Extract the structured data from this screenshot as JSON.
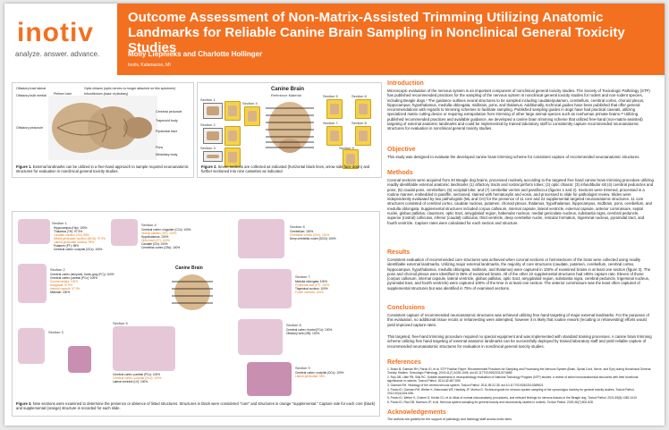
{
  "header": {
    "logo": "inotiv",
    "tagline": "analyze. answer. advance.",
    "title": "Outcome Assessment of Non-Matrix-Assisted Trimming Utilizing Anatomic Landmarks for Reliable Canine Brain Sampling in Nonclinical General Toxicity Studies",
    "authors": "Molly Liepnieks and Charlotte Hollinger",
    "affiliation": "Inotiv, Kalamazoo, MI",
    "accent": "#f37021"
  },
  "fig1": {
    "labels": {
      "olf_tract": "Olfactory tract lateral",
      "olf_bulb": "Olfactory bulb medial",
      "piriform": "Piriform lobe",
      "optic_chiasm": "Optic chiasm (optic nerves no longer attached on this specimen)",
      "infundibulum": "Infundibulum (base of pituitary)",
      "cerebral_ped": "Cerebral peduncle",
      "trapezoid": "Trapezoid body",
      "pyramidal": "Pyramidal tract",
      "pons": "Pons",
      "medulla": "Medullary body",
      "olf_ped": "Olfactory peduncle"
    },
    "caption_bold": "Figure 1.",
    "caption": "External landmarks can be utilized in a free-hand approach to sample required neuroanatomic structures for evaluation in nonclinical general toxicity studies."
  },
  "fig2": {
    "title": "Canine Brain",
    "subtitle": "Reference Material",
    "sections": [
      "Section 1",
      "Section 2",
      "Section 3",
      "Section 4",
      "Section 5",
      "Section 6",
      "Section 7",
      "Section 8",
      "Section 9"
    ],
    "caption_bold": "Figure 2.",
    "caption": "Seven sections are collected as indicated (horizontal black lines, arrow side face down) and further sectioned into nine cassettes as indicated."
  },
  "fig3": {
    "center_label": "Canine Brain",
    "sections": [
      "Section 1",
      "Section 2",
      "Section 3",
      "Section 4",
      "Section 5",
      "Section 6",
      "Section 7",
      "Section 8",
      "Section 9"
    ],
    "list_s1": [
      "Hippocampus (HIp): 100%",
      "Thalamus (TH): 97.9%",
      "Caudate nucleus (CN): 98%",
      "Medial geniculate nucleus (MGN): 97.9%",
      "Lateral geniculate nucleus: 95%",
      "Putamen (PT): 98%",
      "Cerebral cortex: occipital (OCc): 100%"
    ],
    "list_s2": [
      "Cerebral cortex (temporal, fronto-gray (FC)): 100%",
      "Cerebral cortex: parietal (PCc): 100%",
      "Corona radiata: 100%",
      "Amygdala: 97.9%",
      "Internal capsule: 97.9%",
      "Midbrain: 100%"
    ],
    "list_s4": [
      "Cerebral cortex: cingulate (CCc): 100%",
      "Globus pallidus (GP): 100%",
      "Hypothalamus: 100%",
      "Optic tract (OT): 100%",
      "Caudate (CN): 100%",
      "Cerebellar cortex (CBc): 100%"
    ],
    "list_s5": [
      "Cerebral cortex: parietal (PCc): 100%",
      "Cerebral cortex: occipital (OCc): 100%",
      "Lateral ventricle (LV): 100%"
    ],
    "list_s6": [
      "Cerebellum: 100%",
      "Cerebellar vermis (CbV): 100%",
      "Deep cerebellar nuclei (DCN): 100%"
    ],
    "list_s7": [
      "Medulla oblongata: 100%",
      "Pyramidal tract (PT): 100%",
      "Trigeminal nucleus: 100%",
      "Fourth ventricle: 100%"
    ],
    "list_s8": [
      "Cerebral cortex: frontal (FCc): 100%",
      "Olfactory bulb (OB): 100%"
    ],
    "list_s9": [
      "Cerebral cortex: occipital (OCc): 100%",
      "Lateral geniculate: 98%"
    ],
    "caption_bold": "Figure 3.",
    "caption": "Nine sections were examined to determine the presence or absence of listed structures. Structures in black were considered \"core\" and structures in orange \"supplemental.\" Capture rate for each core (black) and supplemental (orange) structure is recorded for each slide."
  },
  "sections": {
    "intro_h": "Introduction",
    "intro": "Microscopic evaluation of the nervous system is an important component of nonclinical general toxicity studies. The Society of Toxicologic Pathology (STP) has published recommended practices for the sampling of the nervous system in nonclinical general toxicity studies for rodent and non-rodent species, including Beagle dogs.¹ The guidance outlines neural structures to be sampled including caudate/putamen, cerebellum, cerebral cortex, choroid plexus, hippocampus, hypothalamus, medulla oblongata, midbrain, pons, and thalamus. Additionally, technical guides have been published that offer general recommendations with regards to trimming schemes to facilitate sampling. Published sampling guides in dogs have had practical caveats, utilizing specialized matrix cutting device or requiring extrapolation from trimming of other large animal species such as nonhuman primate brains.²³ Utilizing published recommended practices and available guidance, we developed a canine brain trimming scheme that utilized free-hand (non-matrix-assisted) targeting of external anatomic landmarks and could be implemented by trained laboratory staff to consistently capture recommended neuroanatomic structures for evaluation in nonclinical general toxicity studies.",
    "obj_h": "Objective",
    "obj": "This study was designed to evaluate the developed canine brain trimming scheme for consistent capture of recommended neuroanatomic structures.",
    "methods_h": "Methods",
    "methods": "Coronal sections were acquired from 40 Beagle dog brains, processed routinely according to the targeted free hand canine brain trimming procedure utilizing readily identifiable external anatomic landmarks (1) olfactory tracts and rostral piriform lobes; (2) optic chiasm; (3) infundibular slit (4) cerebral peduncles and pons; (5) caudal pons, cerebellum; (6) occipital lobe; and (7) cerebellar vermis and parafloccuI (figures 1 and 2). Sections were trimmed, processed in a routine manner, embedded in paraffin, sectioned, stained with hematoxylin and eosin, and processed to slide for pathologist review. Slides were independently evaluated by two pathologists (ML and CH) for the presence of 11 core and 22 supplemental targeted neuroanatomic structures. 11 core structures consisted of cerebral cortex, caudate nucleus, putamen, choroid plexus, thalamus, hypothalamus, hippocampus, midbrain, pons, cerebellum, and medulla oblongata. Supplemental structures included corpus callosum, internal capsule, lateral ventricle, external capsule, anterior commissure, septal nuclei, globus pallidus, claustrum, optic tract, amygdaloid region, habenular nucleus, medial geniculate nucleus, substantia nigra, cerebral peduncle, superior (rostral) colliculus, inferior (caudal) colliculus, third ventricle, deep cerebellar nuclei, reticular formation, trigeminal nucleus, pyramidal tract, and fourth ventricle. Capture rates were calculated for each section and structure.",
    "results_h": "Results",
    "results": "Consistent evaluation of recommended core structures was achieved when coronal sections or hemisections of the brain were collected using readily identifiable external landmarks. Utilizing major external landmarks, the majority of core structures (caudate, putamen, cerebellum, cerebral cortex, hippocampus, hypothalamus, medulla oblongata, midbrain, and thalamus) were captured in 100% of examined brains in at least one section (figure 3). The pons and choroid plexus were identified in 95% of examined brains. All of the other 22 supplemental structures had ≥95% capture rate. Eleven of those (corpus callosum, internal capsule, lateral ventricle, globus pallidus, optic tract, amygdaloid region, substantia nigra, cerebral peduncle, trigeminal nucleus, pyramidal tract, and fourth ventricle) were captured 100% of the time in at least one section. The anterior commissure was the least often captured of supplemental structures but was identified in 75% of examined sections.",
    "concl_h": "Conclusions",
    "concl1": "Consistent capture of recommended neuroanatomic structures was achieved utilizing free hand targeting of major external landmarks. For the purposes of this evaluation, no additional tissue recuts or reharvesting were attempted, however it is likely that routine rework (recutting or reharvesting) efforts would yield improved capture rates.",
    "concl2": "This targeted, free-hand trimming procedure required no special equipment and was implemented with standard training processes. A canine brain trimming scheme utilizing free hand targeting of external anatomic landmarks can be successfully deployed by trained laboratory staff and yield reliable capture of recommended neuroanatomic structures for evaluation in nonclinical general toxicity studies.",
    "refs_h": "References",
    "refs": [
      "1. Bolon B, Garman RH, Pardo ID, et al. STP Position Paper: Recommended Practices for Sampling and Processing the Nervous System (Brain, Spinal Cord, Nerve, and Eye) during Nonclinical General Toxicity Studies. Toxicologic Pathology. 2013;41(7):1028-1048. doi:10.1177/0192623312474865",
      "2. Rao DB, Little PB, Sills RC. Subsite awareness in neuropathology evaluation of National Toxicology Program (NTP) studies: a review of select neuroanatomical structures with their functional significance in rodents. Toxicol Pathol. 2014;42:487-509.",
      "3. Garman RH. Histology of the central nervous system. Toxicol Pathol. 2011;39:22-35. doi:10.1177/0192623310389621",
      "4. Pardo ID, Garman RH, Weber K, Bobrowski WF, Hardisty JF, Morton D. Technical guide for nervous system sampling of the cynomolgus monkey for general toxicity studies. Toxicol Pathol. 2012;40(4):624-636.",
      "5. Pardo ID, Weber K, Cramer S, Krinke GJ, et al. Atlas of normal microanatomy, procedures, and relevant findings for nervous tissues in the Beagle dog. Toxicol Pathol. 2021;49(8):1382-1410.",
      "6. Pardo ID, Rao DB, Morrison JP, et al. Nervous system sampling for general toxicity and neurotoxicity studies in rodents. Toxicol Pathol. 2020;48(7):802-828."
    ],
    "ack_h": "Acknowledgements",
    "ack": "The authors are grateful for the support of pathology and histology staff across Inotiv sites."
  }
}
